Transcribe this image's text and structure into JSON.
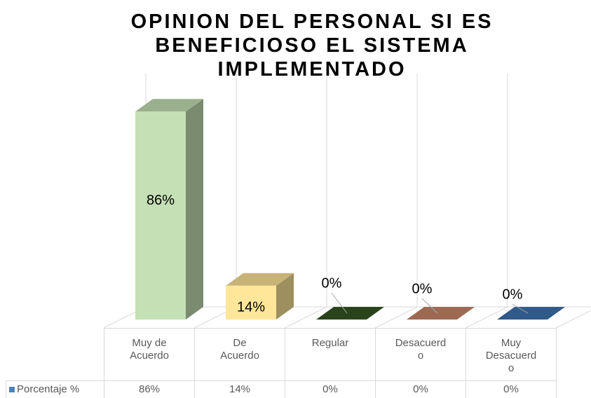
{
  "chart_data": {
    "type": "bar3d",
    "title": "OPINION DEL PERSONAL SI ES BENEFICIOSO EL SISTEMA IMPLEMENTADO",
    "categories": [
      "Muy de Acuerdo",
      "De Acuerdo",
      "Regular",
      "Desacuerdo",
      "Muy Desacuerdo"
    ],
    "series": [
      {
        "name": "Porcentaje %",
        "color": "#4f81bd",
        "values": [
          86,
          14,
          0,
          0,
          0
        ],
        "value_labels": [
          "86%",
          "14%",
          "0%",
          "0%",
          "0%"
        ],
        "colors": [
          "#c5e0b4",
          "#ffe699",
          "#375623",
          "#c9876a",
          "#3e74b0"
        ]
      }
    ],
    "ylim": [
      0,
      100
    ],
    "data_table": true
  }
}
